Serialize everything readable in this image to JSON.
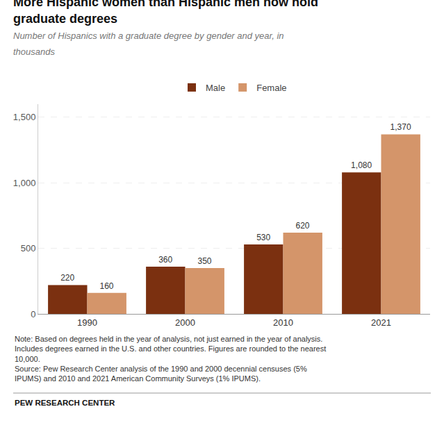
{
  "chart_data": {
    "type": "bar",
    "title": "More Hispanic women than Hispanic men now hold\ngraduate degrees",
    "subtitle": "Number of Hispanics with a graduate degree by gender and year, in\nthousands",
    "categories": [
      "1990",
      "2000",
      "2010",
      "2021"
    ],
    "series": [
      {
        "name": "Male",
        "color": "#7B3010",
        "values": [
          220,
          360,
          530,
          1080
        ],
        "value_labels": [
          "220",
          "360",
          "530",
          "1,080"
        ]
      },
      {
        "name": "Female",
        "color": "#D4956A",
        "values": [
          160,
          350,
          620,
          1370
        ],
        "value_labels": [
          "160",
          "350",
          "620",
          "1,370"
        ]
      }
    ],
    "ylim": [
      0,
      1600
    ],
    "yticks": [
      0,
      500,
      {
        "value": 1000,
        "label": "1,000"
      },
      {
        "value": 1500,
        "label": "1,500"
      }
    ],
    "grid": true,
    "legend": "top",
    "data_labels": true,
    "annotations": [
      "Note: Based on degrees held in the year of analysis, not just earned in the year of analysis.\nIncludes degrees earned in the U.S. and other countries. Figures are rounded to the nearest\n10,000.\nSource: Pew Research Center analysis of the 1990 and 2000 decennial censuses (5%\nIPUMS) and 2010 and 2021 American Community Surveys (1% IPUMS).",
      "PEW RESEARCH CENTER"
    ]
  }
}
